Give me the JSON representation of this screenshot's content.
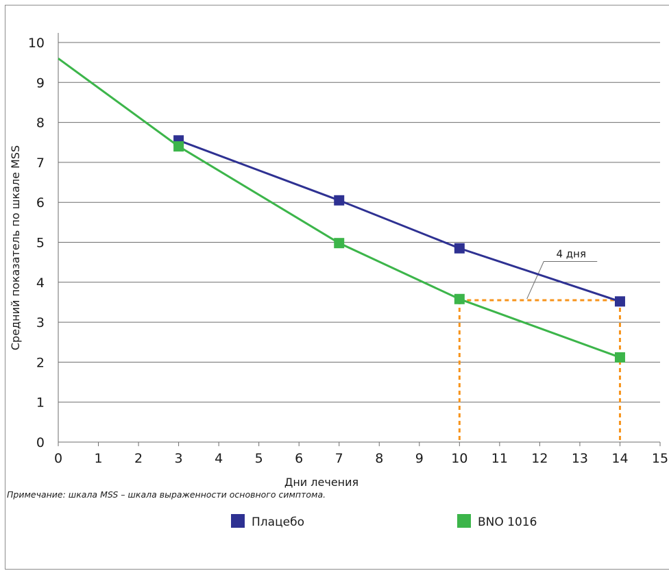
{
  "chart_data": {
    "type": "line",
    "title": "",
    "xlabel": "Дни лечения",
    "ylabel": "Средний показатель по шкале MSS",
    "xlim": [
      0,
      15
    ],
    "ylim": [
      0,
      10
    ],
    "x_ticks": [
      "0",
      "1",
      "2",
      "3",
      "4",
      "5",
      "6",
      "7",
      "8",
      "9",
      "10",
      "11",
      "12",
      "13",
      "14",
      "15"
    ],
    "y_ticks": [
      "0",
      "1",
      "2",
      "3",
      "4",
      "5",
      "6",
      "7",
      "8",
      "9",
      "10"
    ],
    "grid": "horizontal",
    "legend_position": "bottom",
    "series": [
      {
        "name": "Плацебо",
        "color": "#2e3192",
        "line_start": [
          3,
          7.45
        ],
        "points": [
          {
            "x": 3,
            "y": 7.55
          },
          {
            "x": 7,
            "y": 6.05
          },
          {
            "x": 10,
            "y": 4.85
          },
          {
            "x": 14,
            "y": 3.52
          }
        ]
      },
      {
        "name": "BNO 1016",
        "color": "#3cb54a",
        "line_start": [
          0,
          9.6
        ],
        "points": [
          {
            "x": 3,
            "y": 7.4
          },
          {
            "x": 7,
            "y": 4.98
          },
          {
            "x": 10,
            "y": 3.58
          },
          {
            "x": 14,
            "y": 2.12
          }
        ]
      }
    ],
    "annotations": [
      {
        "text": "4 дня",
        "color": "#f7941d",
        "from_x": 10,
        "to_x": 14,
        "y": 3.55
      }
    ]
  },
  "note": "Примечание: шкала MSS – шкала выраженности основного симптома."
}
